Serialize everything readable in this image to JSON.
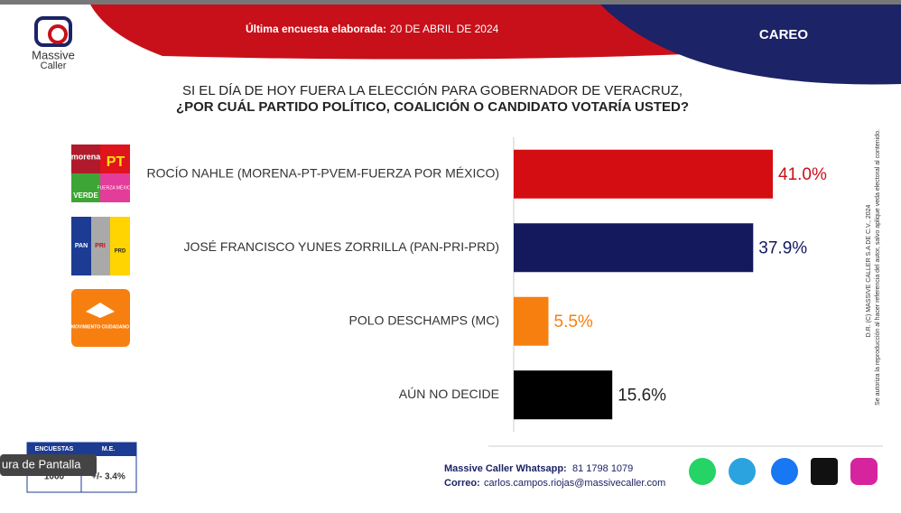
{
  "header": {
    "brand": [
      "Massive",
      "Caller"
    ],
    "survey_label": "Última encuesta elaborada:",
    "survey_date": "20 DE ABRIL DE 2024",
    "section": "CAREO"
  },
  "chart_data": {
    "type": "hbar",
    "title": [
      "SI EL DÍA DE HOY FUERA LA ELECCIÓN PARA GOBERNADOR DE VERACRUZ,",
      "¿POR CUÁL PARTIDO POLÍTICO, COALICIÓN O CANDIDATO VOTARÍA USTED?"
    ],
    "categories": [
      "ROCÍO NAHLE (MORENA-PT-PVEM-FUERZA POR MÉXICO)",
      "JOSÉ FRANCISCO YUNES ZORRILLA (PAN-PRI-PRD)",
      "POLO DESCHAMPS (MC)",
      "AÚN NO DECIDE"
    ],
    "values": [
      41.0,
      37.9,
      5.5,
      15.6
    ],
    "value_labels": [
      "41.0%",
      "37.9%",
      "5.5%",
      "15.6%"
    ],
    "colors": [
      "#d40d12",
      "#14195e",
      "#f77f10",
      "#000000"
    ],
    "label_colors": [
      "#c8101a",
      "#14195e",
      "#f77f10",
      "#222222"
    ],
    "xlim": [
      0,
      50
    ]
  },
  "logos": [
    [
      "morena",
      "PT",
      "VERDE",
      "FUERZA MÉXICO"
    ],
    [
      "PAN",
      "PRI",
      "PRD"
    ],
    [
      "MOVIMIENTO CIUDADANO"
    ]
  ],
  "side_note": [
    "D.R. (C) MASSIVE CALLER S.A DE C.V., 2024",
    "Se autoriza la reproducción al hacer referencia del autor, salvo aplique veda electoral al contenido."
  ],
  "table": {
    "headers": [
      "ENCUESTAS",
      "M.E."
    ],
    "row": [
      "1000",
      "+/- 3.4%"
    ]
  },
  "tooltip": "ura de Pantalla",
  "footer": {
    "whatsapp_label": "Massive Caller Whatsapp:",
    "whatsapp": "81 1798 1079",
    "email_label": "Correo:",
    "email": "carlos.campos.riojas@massivecaller.com"
  }
}
